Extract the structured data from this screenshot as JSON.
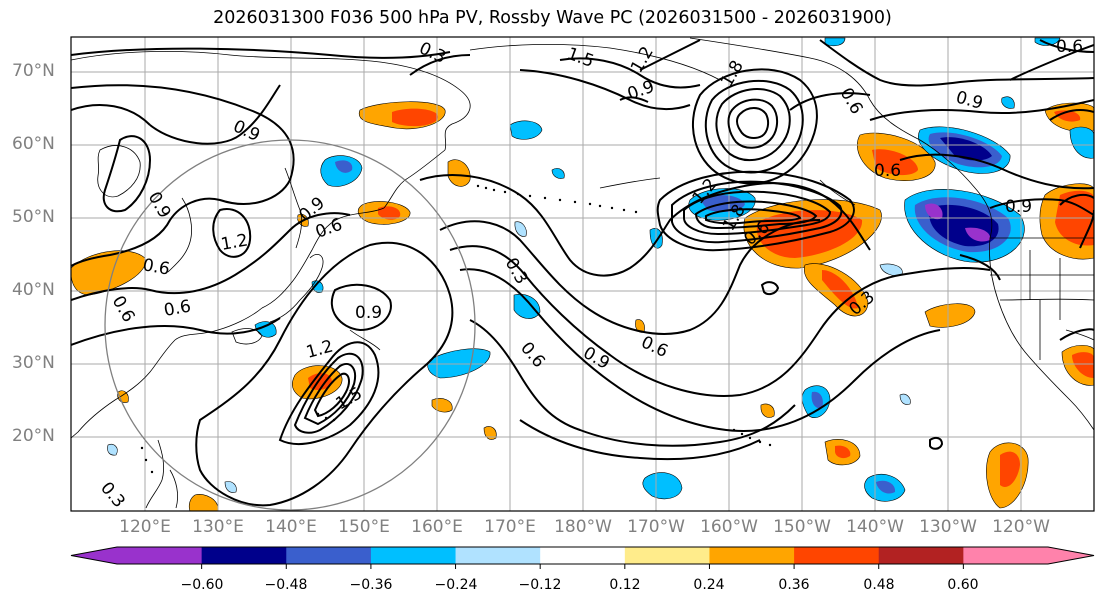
{
  "title": "2026031300 F036 500 hPa PV, Rossby Wave PC (2026031500 - 2026031900)",
  "lat_labels": [
    "70°N",
    "60°N",
    "50°N",
    "40°N",
    "30°N",
    "20°N"
  ],
  "lon_labels": [
    "120°E",
    "130°E",
    "140°E",
    "150°E",
    "160°E",
    "170°E",
    "180°W",
    "170°W",
    "160°W",
    "150°W",
    "140°W",
    "130°W",
    "120°W"
  ],
  "colorbar": {
    "colors": [
      "#9932cc",
      "#00008b",
      "#3a5fcd",
      "#00bfff",
      "#b0e2ff",
      "#ffffff",
      "#ffec8b",
      "#ffa500",
      "#ff4500",
      "#b22222",
      "#ff82ab"
    ],
    "tick_labels": [
      "−0.60",
      "−0.48",
      "−0.36",
      "−0.24",
      "−0.12",
      "0.12",
      "0.24",
      "0.36",
      "0.48",
      "0.60"
    ]
  },
  "contour_labels": [
    "0.3",
    "0.6",
    "0.9",
    "1.2",
    "1.5",
    "1.8"
  ],
  "contour_label_instances": [
    "0.3",
    "1.5",
    "1.2",
    "0.9",
    "0.6",
    "1.8",
    "0.9",
    "0.6",
    "0.9",
    "1.2",
    "0.6",
    "0.9",
    "1.2",
    "1.5",
    "0.6",
    "0.3",
    "0.6",
    "0.9",
    "0.6",
    "1.2",
    "1.8",
    "0.6",
    "0.6",
    "0.6",
    "0.9",
    "0.9",
    "0.6",
    "0.3",
    "0.9",
    "0.3"
  ]
}
